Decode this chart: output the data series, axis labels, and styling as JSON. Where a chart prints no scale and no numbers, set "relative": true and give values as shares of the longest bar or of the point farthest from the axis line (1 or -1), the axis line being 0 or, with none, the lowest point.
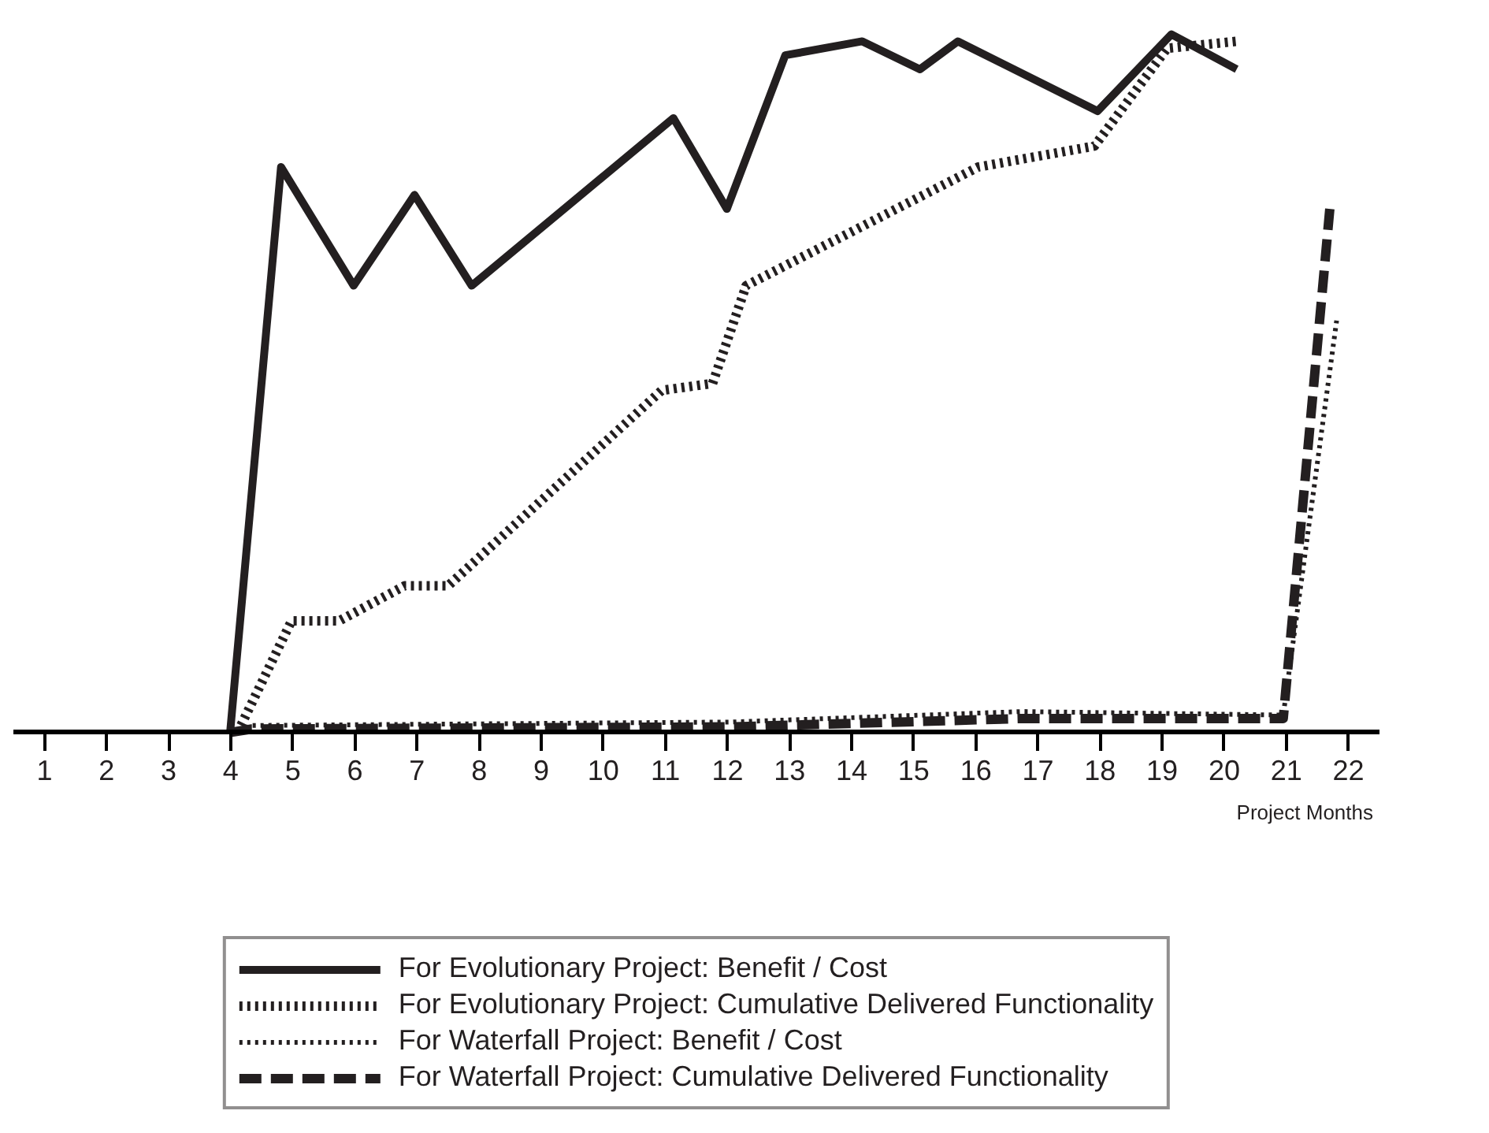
{
  "chart_data": {
    "type": "line",
    "relative": true,
    "xlabel": "Project Months",
    "xlim": [
      0.5,
      22.5
    ],
    "xticks": [
      1,
      2,
      3,
      4,
      5,
      6,
      7,
      8,
      9,
      10,
      11,
      12,
      13,
      14,
      15,
      16,
      17,
      18,
      19,
      20,
      21,
      22
    ],
    "grid": false,
    "legend": "bottom",
    "marker": "none",
    "series": [
      {
        "name": "For Evolutionary Project: Benefit / Cost",
        "color": "#231f20",
        "line_style": "solid",
        "x": [
          3.99,
          4.81,
          5.98,
          6.96,
          7.88,
          11.13,
          11.99,
          12.93,
          14.17,
          15.1,
          15.71,
          17.96,
          19.15,
          20.2
        ],
        "values": [
          0,
          0.81,
          0.64,
          0.77,
          0.64,
          0.88,
          0.75,
          0.97,
          0.99,
          0.95,
          0.99,
          0.89,
          1.0,
          0.95
        ]
      },
      {
        "name": "For Evolutionary Project: Cumulative Delivered Functionality",
        "color": "#231f20",
        "line_style": "dotted",
        "x": [
          4.11,
          4.98,
          5.75,
          6.8,
          7.5,
          10.94,
          11.76,
          12.3,
          16.04,
          17.91,
          19.08,
          20.2
        ],
        "values": [
          0,
          0.16,
          0.16,
          0.21,
          0.21,
          0.49,
          0.5,
          0.64,
          0.81,
          0.84,
          0.98,
          0.99
        ]
      },
      {
        "name": "For Waterfall Project: Benefit / Cost",
        "color": "#231f20",
        "line_style": "dotted",
        "x": [
          3.99,
          4.34,
          12.06,
          16.74,
          20.95,
          21.81
        ],
        "values": [
          0,
          0.01,
          0.015,
          0.03,
          0.025,
          0.59
        ]
      },
      {
        "name": "For Waterfall Project: Cumulative Delivered Functionality",
        "color": "#231f20",
        "line_style": "dashed",
        "x": [
          3.99,
          4.34,
          12.06,
          16.74,
          20.95,
          21.7
        ],
        "values": [
          0,
          0.005,
          0.008,
          0.02,
          0.02,
          0.75
        ]
      }
    ]
  }
}
